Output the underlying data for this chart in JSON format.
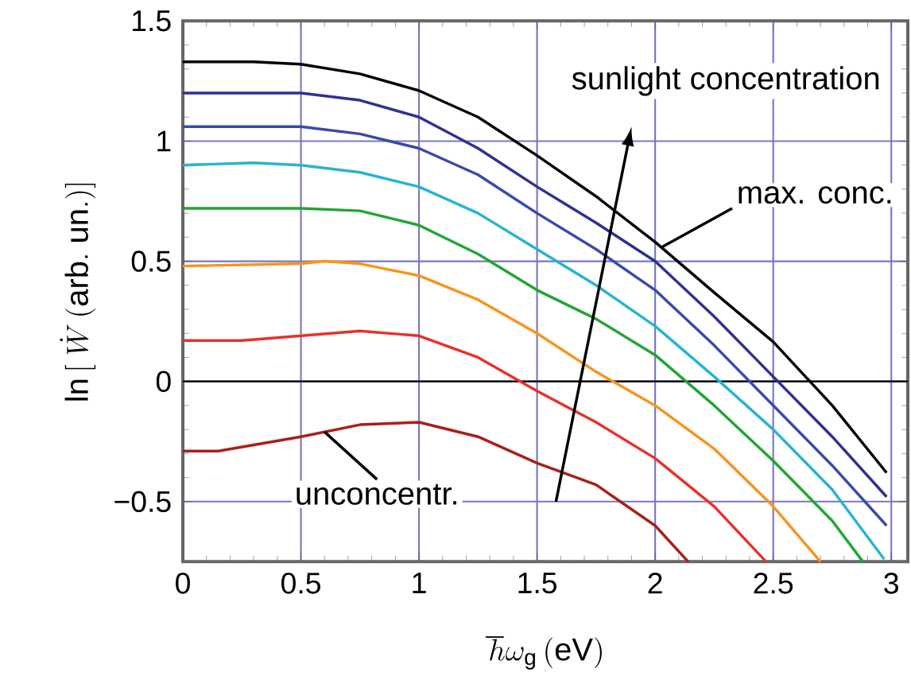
{
  "chart_data": {
    "type": "line",
    "xlabel": "\\hbar\\omega_{\\mathrm{g}}\\,(\\mathrm{eV})",
    "ylabel": "\\ln\\,[\\;\\dot{W}\\,(\\mathrm{arb.\\ un.})]",
    "xlim": [
      0,
      3.07
    ],
    "ylim": [
      -0.75,
      1.5
    ],
    "xticks": [
      0,
      0.5,
      1,
      1.5,
      2,
      2.5,
      3
    ],
    "yticks": [
      {
        "value": -0.5,
        "label": "−0.5"
      },
      0,
      0.5,
      1,
      1.5
    ],
    "grid": true,
    "marker": "none",
    "line_style": "solid",
    "ref_lines": [
      {
        "axis": "y",
        "value": 0,
        "color": "#000000"
      }
    ],
    "annotations": [
      {
        "text": "unconcentr.",
        "x": 0.6,
        "y": -0.21
      },
      {
        "text": "max. conc.",
        "x": 2.03,
        "y": 0.56
      },
      "sunlight concentration"
    ],
    "series": [
      {
        "color": "#000000",
        "x": [
          0,
          0.3,
          0.5,
          0.75,
          1.0,
          1.25,
          1.5,
          1.75,
          2.0,
          2.25,
          2.5,
          2.75,
          2.98
        ],
        "values": [
          1.33,
          1.33,
          1.32,
          1.28,
          1.21,
          1.1,
          0.94,
          0.77,
          0.58,
          0.37,
          0.165,
          -0.1,
          -0.38
        ]
      },
      {
        "color": "#2e3192",
        "x": [
          0,
          0.5,
          0.75,
          1.0,
          1.25,
          1.5,
          1.75,
          2.0,
          2.25,
          2.5,
          2.75,
          2.98
        ],
        "values": [
          1.2,
          1.2,
          1.17,
          1.1,
          0.97,
          0.81,
          0.66,
          0.5,
          0.27,
          0.02,
          -0.23,
          -0.48
        ]
      },
      {
        "color": "#3a4aa8",
        "x": [
          0,
          0.5,
          0.75,
          1.0,
          1.25,
          1.5,
          1.75,
          2.0,
          2.25,
          2.5,
          2.75,
          2.98
        ],
        "values": [
          1.06,
          1.06,
          1.03,
          0.97,
          0.86,
          0.7,
          0.55,
          0.38,
          0.15,
          -0.1,
          -0.35,
          -0.6
        ]
      },
      {
        "color": "#27b4d0",
        "x": [
          0,
          0.3,
          0.5,
          0.75,
          1.0,
          1.25,
          1.5,
          1.75,
          2.0,
          2.25,
          2.5,
          2.75,
          2.97
        ],
        "values": [
          0.9,
          0.91,
          0.9,
          0.87,
          0.81,
          0.7,
          0.55,
          0.4,
          0.23,
          0.02,
          -0.2,
          -0.45,
          -0.74
        ]
      },
      {
        "color": "#22a535",
        "x": [
          0,
          0.5,
          0.75,
          1.0,
          1.25,
          1.5,
          1.75,
          2.0,
          2.25,
          2.5,
          2.75,
          2.88
        ],
        "values": [
          0.72,
          0.72,
          0.71,
          0.65,
          0.53,
          0.38,
          0.26,
          0.11,
          -0.1,
          -0.33,
          -0.58,
          -0.75
        ]
      },
      {
        "color": "#f7941d",
        "x": [
          0,
          0.5,
          0.6,
          0.75,
          1.0,
          1.25,
          1.5,
          1.75,
          2.0,
          2.25,
          2.5,
          2.7
        ],
        "values": [
          0.48,
          0.49,
          0.5,
          0.49,
          0.44,
          0.34,
          0.2,
          0.04,
          -0.1,
          -0.28,
          -0.52,
          -0.75
        ]
      },
      {
        "color": "#e8312a",
        "x": [
          0,
          0.25,
          0.5,
          0.75,
          1.0,
          1.25,
          1.5,
          1.75,
          2.0,
          2.25,
          2.47
        ],
        "values": [
          0.17,
          0.17,
          0.19,
          0.21,
          0.19,
          0.1,
          -0.04,
          -0.17,
          -0.32,
          -0.52,
          -0.75
        ]
      },
      {
        "color": "#a8201a",
        "x": [
          0,
          0.15,
          0.5,
          0.75,
          1.0,
          1.25,
          1.5,
          1.75,
          2.0,
          2.14
        ],
        "values": [
          -0.29,
          -0.29,
          -0.23,
          -0.18,
          -0.17,
          -0.23,
          -0.34,
          -0.43,
          -0.6,
          -0.75
        ]
      }
    ]
  }
}
